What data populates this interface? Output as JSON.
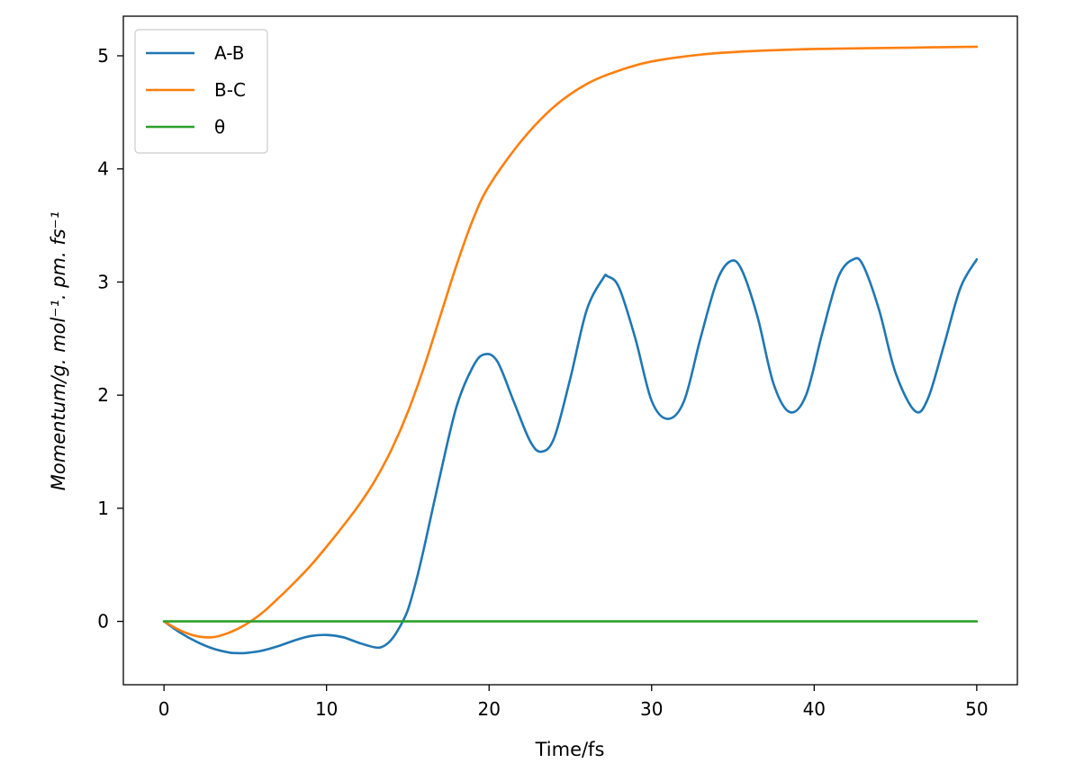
{
  "chart_data": {
    "type": "line",
    "xlabel": "Time/fs",
    "ylabel": "Momentum/g. mol⁻¹. pm. fs⁻¹",
    "xlim": [
      -2.5,
      52.5
    ],
    "ylim": [
      -0.56,
      5.35
    ],
    "xticks": [
      0,
      10,
      20,
      30,
      40,
      50
    ],
    "yticks": [
      0,
      1,
      2,
      3,
      4,
      5
    ],
    "legend": "top-left",
    "grid": false,
    "series": [
      {
        "name": "A-B",
        "color": "#1f77b4",
        "points": [
          [
            0,
            0
          ],
          [
            1,
            -0.1
          ],
          [
            2,
            -0.18
          ],
          [
            3,
            -0.24
          ],
          [
            4,
            -0.275
          ],
          [
            4.5,
            -0.28
          ],
          [
            5,
            -0.28
          ],
          [
            6,
            -0.26
          ],
          [
            7,
            -0.22
          ],
          [
            8,
            -0.17
          ],
          [
            9,
            -0.13
          ],
          [
            10,
            -0.12
          ],
          [
            11,
            -0.14
          ],
          [
            12,
            -0.19
          ],
          [
            13,
            -0.23
          ],
          [
            13.5,
            -0.22
          ],
          [
            14,
            -0.16
          ],
          [
            14.5,
            -0.05
          ],
          [
            15,
            0.1
          ],
          [
            15.5,
            0.35
          ],
          [
            16,
            0.65
          ],
          [
            17,
            1.3
          ],
          [
            18,
            1.9
          ],
          [
            19,
            2.25
          ],
          [
            19.7,
            2.36
          ],
          [
            20.5,
            2.3
          ],
          [
            21.5,
            1.95
          ],
          [
            22.5,
            1.6
          ],
          [
            23.2,
            1.5
          ],
          [
            24,
            1.62
          ],
          [
            25,
            2.15
          ],
          [
            26,
            2.75
          ],
          [
            27,
            3.03
          ],
          [
            27.3,
            3.05
          ],
          [
            28,
            2.95
          ],
          [
            29,
            2.5
          ],
          [
            30,
            1.95
          ],
          [
            31,
            1.79
          ],
          [
            32,
            1.95
          ],
          [
            33,
            2.5
          ],
          [
            34,
            3.0
          ],
          [
            34.8,
            3.18
          ],
          [
            35.5,
            3.12
          ],
          [
            36.5,
            2.7
          ],
          [
            37.5,
            2.1
          ],
          [
            38.5,
            1.85
          ],
          [
            39.5,
            2.0
          ],
          [
            40.5,
            2.55
          ],
          [
            41.5,
            3.05
          ],
          [
            42.4,
            3.2
          ],
          [
            43,
            3.15
          ],
          [
            44,
            2.75
          ],
          [
            45,
            2.2
          ],
          [
            46.2,
            1.86
          ],
          [
            47,
            1.97
          ],
          [
            48,
            2.45
          ],
          [
            49,
            2.95
          ],
          [
            50,
            3.2
          ]
        ]
      },
      {
        "name": "B-C",
        "color": "#ff7f0e",
        "points": [
          [
            0,
            0
          ],
          [
            1,
            -0.08
          ],
          [
            2,
            -0.13
          ],
          [
            3,
            -0.14
          ],
          [
            4,
            -0.1
          ],
          [
            5,
            -0.03
          ],
          [
            6,
            0.07
          ],
          [
            7,
            0.2
          ],
          [
            8,
            0.34
          ],
          [
            9,
            0.49
          ],
          [
            10,
            0.66
          ],
          [
            11,
            0.84
          ],
          [
            12,
            1.03
          ],
          [
            13,
            1.25
          ],
          [
            14,
            1.52
          ],
          [
            15,
            1.85
          ],
          [
            16,
            2.25
          ],
          [
            17,
            2.7
          ],
          [
            18,
            3.15
          ],
          [
            19,
            3.55
          ],
          [
            20,
            3.85
          ],
          [
            22,
            4.25
          ],
          [
            24,
            4.55
          ],
          [
            26,
            4.75
          ],
          [
            28,
            4.87
          ],
          [
            30,
            4.95
          ],
          [
            33,
            5.01
          ],
          [
            36,
            5.04
          ],
          [
            40,
            5.06
          ],
          [
            45,
            5.07
          ],
          [
            50,
            5.08
          ]
        ]
      },
      {
        "name": "θ",
        "color": "#2ca02c",
        "points": [
          [
            0,
            0
          ],
          [
            50,
            0
          ]
        ]
      }
    ]
  }
}
